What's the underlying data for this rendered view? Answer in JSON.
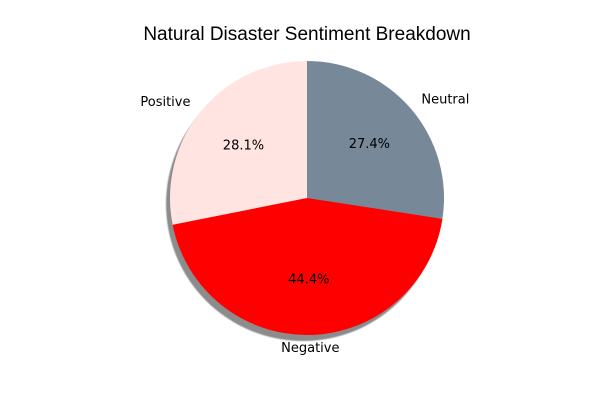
{
  "chart_data": {
    "type": "pie",
    "title": "Natural Disaster Sentiment Breakdown",
    "categories": [
      "Neutral",
      "Negative",
      "Positive"
    ],
    "values": [
      27.4,
      44.4,
      28.1
    ],
    "percent_labels": [
      "27.4%",
      "44.4%",
      "28.1%"
    ],
    "colors": [
      "#778899",
      "#ff0000",
      "#ffe4e1"
    ],
    "start_angle_deg": 90,
    "direction": "clockwise",
    "shadow": true,
    "legend": "none"
  }
}
